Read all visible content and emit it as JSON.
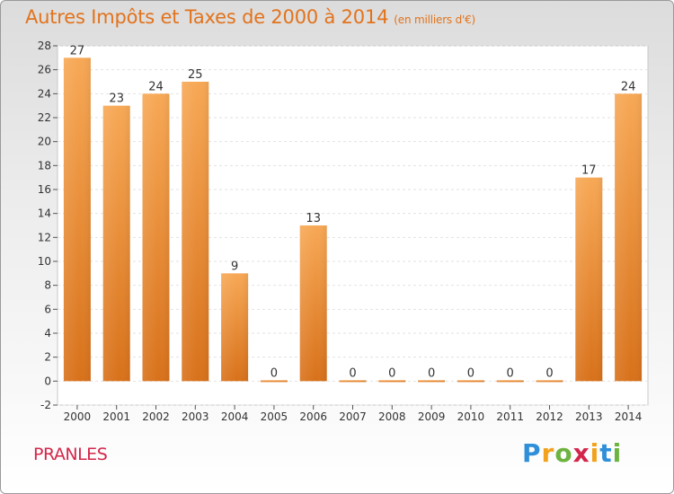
{
  "header": {
    "title": "Autres Impôts et Taxes de 2000 à 2014",
    "unit": "(en milliers d'€)"
  },
  "commune": "PRANLES",
  "logo": {
    "letters": [
      "P",
      "r",
      "o",
      "x",
      "i",
      "t",
      "i"
    ],
    "colors": [
      "#2f8fd8",
      "#f2a21c",
      "#6cb33f",
      "#d4264b",
      "#f2a21c",
      "#2f8fd8",
      "#6cb33f"
    ]
  },
  "colors": {
    "bar_light": "#f7a855",
    "bar_dark": "#d8711a",
    "title": "#e2731c"
  },
  "chart_data": {
    "type": "bar",
    "categories": [
      "2000",
      "2001",
      "2002",
      "2003",
      "2004",
      "2005",
      "2006",
      "2007",
      "2008",
      "2009",
      "2010",
      "2011",
      "2012",
      "2013",
      "2014"
    ],
    "values": [
      27,
      23,
      24,
      25,
      9,
      0,
      13,
      0,
      0,
      0,
      0,
      0,
      0,
      17,
      24
    ],
    "data_labels": [
      "27",
      "23",
      "24",
      "25",
      "9",
      "0",
      "13",
      "0",
      "0",
      "0",
      "0",
      "0",
      "0",
      "17",
      "24"
    ],
    "yticks": [
      "-2",
      "0",
      "2",
      "4",
      "6",
      "8",
      "10",
      "12",
      "14",
      "16",
      "18",
      "20",
      "22",
      "24",
      "26",
      "28"
    ],
    "ylim": [
      -2,
      28
    ],
    "grid": "horizontal",
    "legend": "none"
  }
}
